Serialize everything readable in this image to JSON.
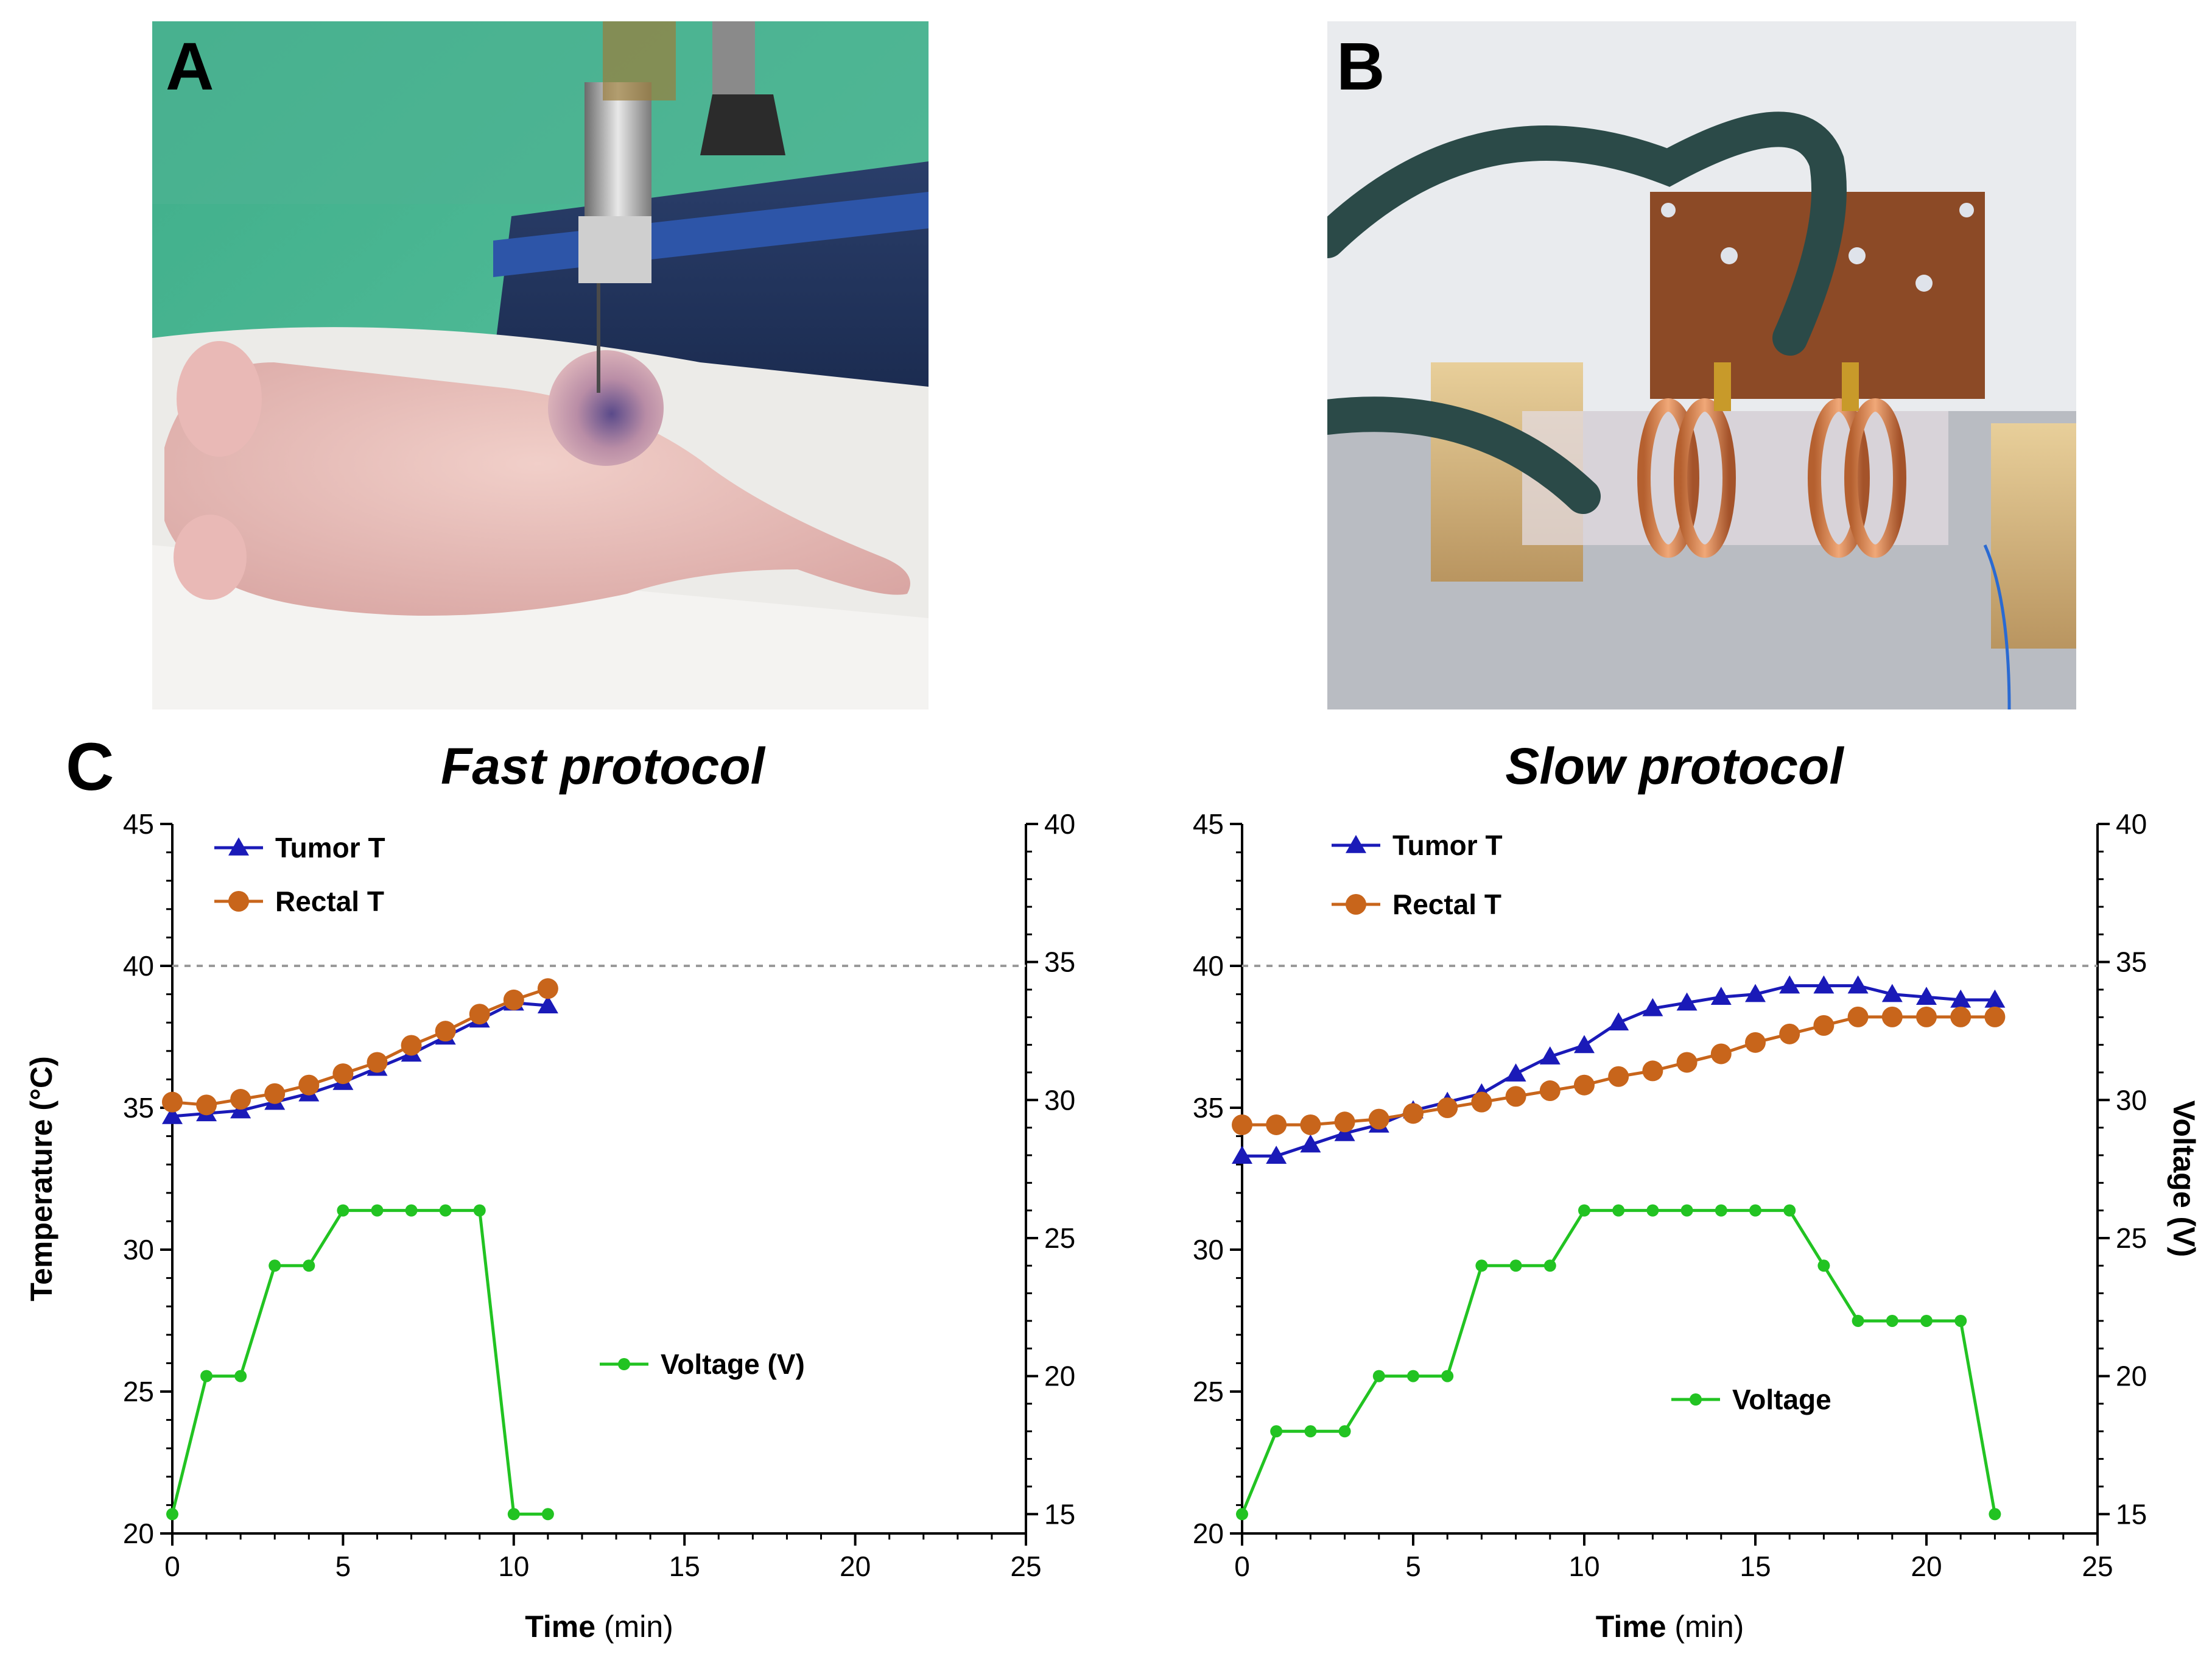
{
  "panels": {
    "a": {
      "letter": "A"
    },
    "b": {
      "letter": "B"
    },
    "c": {
      "letter": "C"
    }
  },
  "colors": {
    "tumor": "#1a1ab8",
    "rectal": "#c8651b",
    "voltage": "#22c322",
    "threshold": "#9a9a9a"
  },
  "chart_data": [
    {
      "type": "line",
      "title": "Fast protocol",
      "xlabel_bold": "Time",
      "xlabel_unit": " (min)",
      "ylabel": "Temperature (°C)",
      "y2label": "",
      "xlim": [
        0,
        25
      ],
      "xticks": [
        0,
        5,
        10,
        15,
        20,
        25
      ],
      "ylim": [
        20,
        45
      ],
      "yticks": [
        20,
        25,
        30,
        35,
        40,
        45
      ],
      "y2lim": [
        14.3,
        40
      ],
      "y2ticks": [
        15,
        20,
        25,
        30,
        35,
        40
      ],
      "threshold": 40,
      "legend": {
        "tumor": "Tumor T",
        "rectal": "Rectal T",
        "voltage": "Voltage (V)"
      },
      "series": [
        {
          "name": "Tumor T",
          "axis": "left",
          "marker": "triangle",
          "x": [
            0,
            1,
            2,
            3,
            4,
            5,
            6,
            7,
            8,
            9,
            10,
            11
          ],
          "values": [
            34.7,
            34.8,
            34.9,
            35.2,
            35.5,
            35.9,
            36.4,
            36.9,
            37.5,
            38.1,
            38.7,
            38.6
          ]
        },
        {
          "name": "Rectal T",
          "axis": "left",
          "marker": "circle",
          "x": [
            0,
            1,
            2,
            3,
            4,
            5,
            6,
            7,
            8,
            9,
            10,
            11
          ],
          "values": [
            35.2,
            35.1,
            35.3,
            35.5,
            35.8,
            36.2,
            36.6,
            37.2,
            37.7,
            38.3,
            38.8,
            39.2
          ]
        },
        {
          "name": "Voltage (V)",
          "axis": "right",
          "marker": "dot",
          "x": [
            0,
            1,
            2,
            3,
            4,
            5,
            6,
            7,
            8,
            9,
            10,
            11
          ],
          "values": [
            15,
            20,
            20,
            24,
            24,
            26,
            26,
            26,
            26,
            26,
            15,
            15
          ]
        }
      ]
    },
    {
      "type": "line",
      "title": "Slow protocol",
      "xlabel_bold": "Time",
      "xlabel_unit": " (min)",
      "ylabel": "",
      "y2label": "Voltage (V)",
      "xlim": [
        0,
        25
      ],
      "xticks": [
        0,
        5,
        10,
        15,
        20,
        25
      ],
      "ylim": [
        20,
        45
      ],
      "yticks": [
        20,
        25,
        30,
        35,
        40,
        45
      ],
      "y2lim": [
        14.3,
        40
      ],
      "y2ticks": [
        15,
        20,
        25,
        30,
        35,
        40
      ],
      "threshold": 40,
      "legend": {
        "tumor": "Tumor T",
        "rectal": "Rectal T",
        "voltage": "Voltage"
      },
      "series": [
        {
          "name": "Tumor T",
          "axis": "left",
          "marker": "triangle",
          "x": [
            0,
            1,
            2,
            3,
            4,
            5,
            6,
            7,
            8,
            9,
            10,
            11,
            12,
            13,
            14,
            15,
            16,
            17,
            18,
            19,
            20,
            21,
            22
          ],
          "values": [
            33.3,
            33.3,
            33.7,
            34.1,
            34.4,
            34.9,
            35.2,
            35.5,
            36.2,
            36.8,
            37.2,
            38.0,
            38.5,
            38.7,
            38.9,
            39.0,
            39.3,
            39.3,
            39.3,
            39.0,
            38.9,
            38.8,
            38.8
          ]
        },
        {
          "name": "Rectal T",
          "axis": "left",
          "marker": "circle",
          "x": [
            0,
            1,
            2,
            3,
            4,
            5,
            6,
            7,
            8,
            9,
            10,
            11,
            12,
            13,
            14,
            15,
            16,
            17,
            18,
            19,
            20,
            21,
            22
          ],
          "values": [
            34.4,
            34.4,
            34.4,
            34.5,
            34.6,
            34.8,
            35.0,
            35.2,
            35.4,
            35.6,
            35.8,
            36.1,
            36.3,
            36.6,
            36.9,
            37.3,
            37.6,
            37.9,
            38.2,
            38.2,
            38.2,
            38.2,
            38.2
          ]
        },
        {
          "name": "Voltage",
          "axis": "right",
          "marker": "dot",
          "x": [
            0,
            1,
            2,
            3,
            4,
            5,
            6,
            7,
            8,
            9,
            10,
            11,
            12,
            13,
            14,
            15,
            16,
            17,
            18,
            19,
            20,
            21,
            22
          ],
          "values": [
            15,
            18,
            18,
            18,
            20,
            20,
            20,
            24,
            24,
            24,
            26,
            26,
            26,
            26,
            26,
            26,
            26,
            24,
            22,
            22,
            22,
            22,
            15
          ]
        }
      ]
    }
  ]
}
